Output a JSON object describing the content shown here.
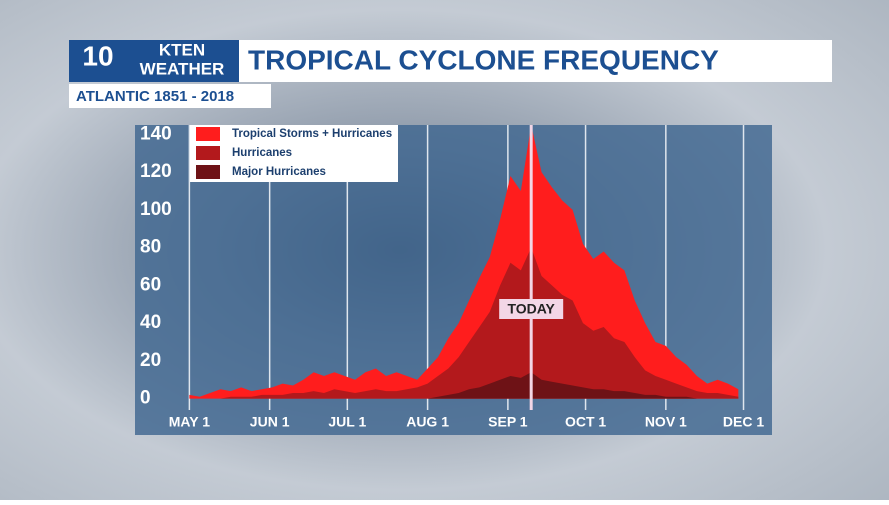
{
  "chart_data": {
    "type": "area",
    "logo": {
      "number": "10",
      "line1": "KTEN",
      "line2": "WEATHER"
    },
    "title": "TROPICAL CYCLONE FREQUENCY",
    "subtitle": "ATLANTIC 1851 - 2018",
    "x": [
      0,
      4,
      8,
      12,
      16,
      20,
      24,
      28,
      32,
      36,
      40,
      44,
      48,
      52,
      56,
      60,
      64,
      68,
      72,
      76,
      80,
      84,
      88,
      92,
      96,
      100,
      104,
      108,
      112,
      116,
      120,
      124,
      128,
      132,
      136,
      140,
      144,
      148,
      152,
      156,
      160,
      164,
      168,
      172,
      176,
      180,
      184,
      188,
      192,
      196,
      200,
      204,
      208,
      212
    ],
    "xlim": [
      -21,
      225
    ],
    "xticks": [
      {
        "value": 0,
        "label": "MAY 1"
      },
      {
        "value": 31,
        "label": "JUN 1"
      },
      {
        "value": 61,
        "label": "JUL 1"
      },
      {
        "value": 92,
        "label": "AUG 1"
      },
      {
        "value": 123,
        "label": "SEP 1"
      },
      {
        "value": 153,
        "label": "OCT 1"
      },
      {
        "value": 184,
        "label": "NOV 1"
      },
      {
        "value": 214,
        "label": "DEC 1"
      }
    ],
    "ylim": [
      -6,
      145
    ],
    "yticks": [
      0,
      20,
      40,
      60,
      80,
      100,
      120,
      140
    ],
    "series": [
      {
        "name": "Tropical Storms + Hurricanes",
        "color": "#ff1d1d",
        "values": [
          2,
          1,
          3,
          5,
          4,
          6,
          4,
          5,
          6,
          8,
          7,
          10,
          14,
          12,
          14,
          12,
          10,
          14,
          16,
          12,
          14,
          12,
          10,
          16,
          22,
          32,
          40,
          52,
          64,
          75,
          95,
          118,
          110,
          145,
          120,
          112,
          105,
          100,
          82,
          74,
          78,
          72,
          68,
          52,
          40,
          30,
          28,
          22,
          18,
          12,
          8,
          10,
          8,
          5
        ]
      },
      {
        "name": "Hurricanes",
        "color": "#b3191c",
        "values": [
          0,
          0,
          0,
          0,
          1,
          1,
          1,
          2,
          2,
          2,
          3,
          3,
          4,
          3,
          5,
          4,
          3,
          4,
          5,
          4,
          4,
          5,
          6,
          8,
          12,
          16,
          22,
          30,
          38,
          46,
          60,
          72,
          68,
          80,
          65,
          60,
          55,
          52,
          40,
          36,
          38,
          32,
          30,
          22,
          15,
          12,
          10,
          8,
          6,
          4,
          3,
          3,
          2,
          1
        ]
      },
      {
        "name": "Major Hurricanes",
        "color": "#6e1216",
        "values": [
          0,
          0,
          0,
          0,
          0,
          0,
          0,
          0,
          0,
          0,
          0,
          0,
          0,
          0,
          0,
          0,
          0,
          0,
          0,
          0,
          0,
          0,
          0,
          0,
          1,
          2,
          3,
          5,
          6,
          8,
          10,
          12,
          11,
          14,
          10,
          9,
          8,
          7,
          6,
          5,
          5,
          4,
          4,
          3,
          2,
          2,
          1,
          1,
          1,
          0,
          0,
          0,
          0,
          0
        ]
      }
    ],
    "today": {
      "label": "TODAY",
      "x": 132
    },
    "grid": true
  }
}
